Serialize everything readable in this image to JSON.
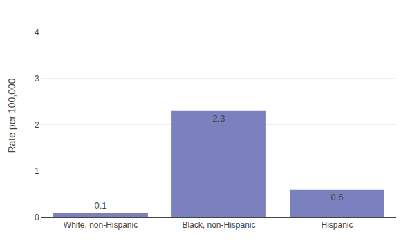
{
  "chart_data": {
    "type": "bar",
    "categories": [
      "White, non-Hispanic",
      "Black, non-Hispanic",
      "Hispanic"
    ],
    "values": [
      0.1,
      2.3,
      0.6
    ],
    "color": "#7b80be",
    "ylabel": "Rate per 100,000",
    "ylim": [
      0,
      4.4
    ],
    "yticks": [
      0,
      1,
      2,
      3,
      4
    ],
    "grid": true,
    "data_labels": true
  }
}
